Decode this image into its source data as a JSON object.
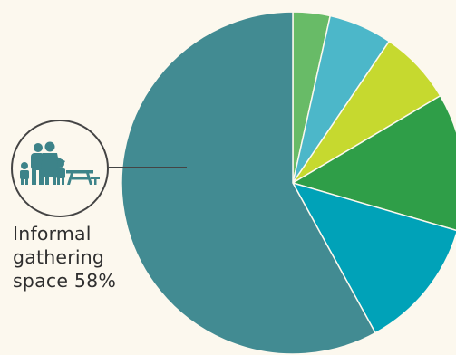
{
  "chart_data": {
    "type": "pie",
    "slices": [
      {
        "value": 3.5,
        "color": "#68bb67"
      },
      {
        "value": 6.0,
        "color": "#4cb7c9"
      },
      {
        "value": 7.0,
        "color": "#c6d92f"
      },
      {
        "value": 13.0,
        "color": "#2f9e48"
      },
      {
        "value": 12.5,
        "color": "#00a2b8"
      },
      {
        "label": "Informal gathering space",
        "value": 58,
        "color": "#428b92",
        "icon": "family-picnic-icon"
      }
    ],
    "callout": {
      "lines": [
        "Informal",
        "gathering",
        "space 58%"
      ]
    }
  }
}
